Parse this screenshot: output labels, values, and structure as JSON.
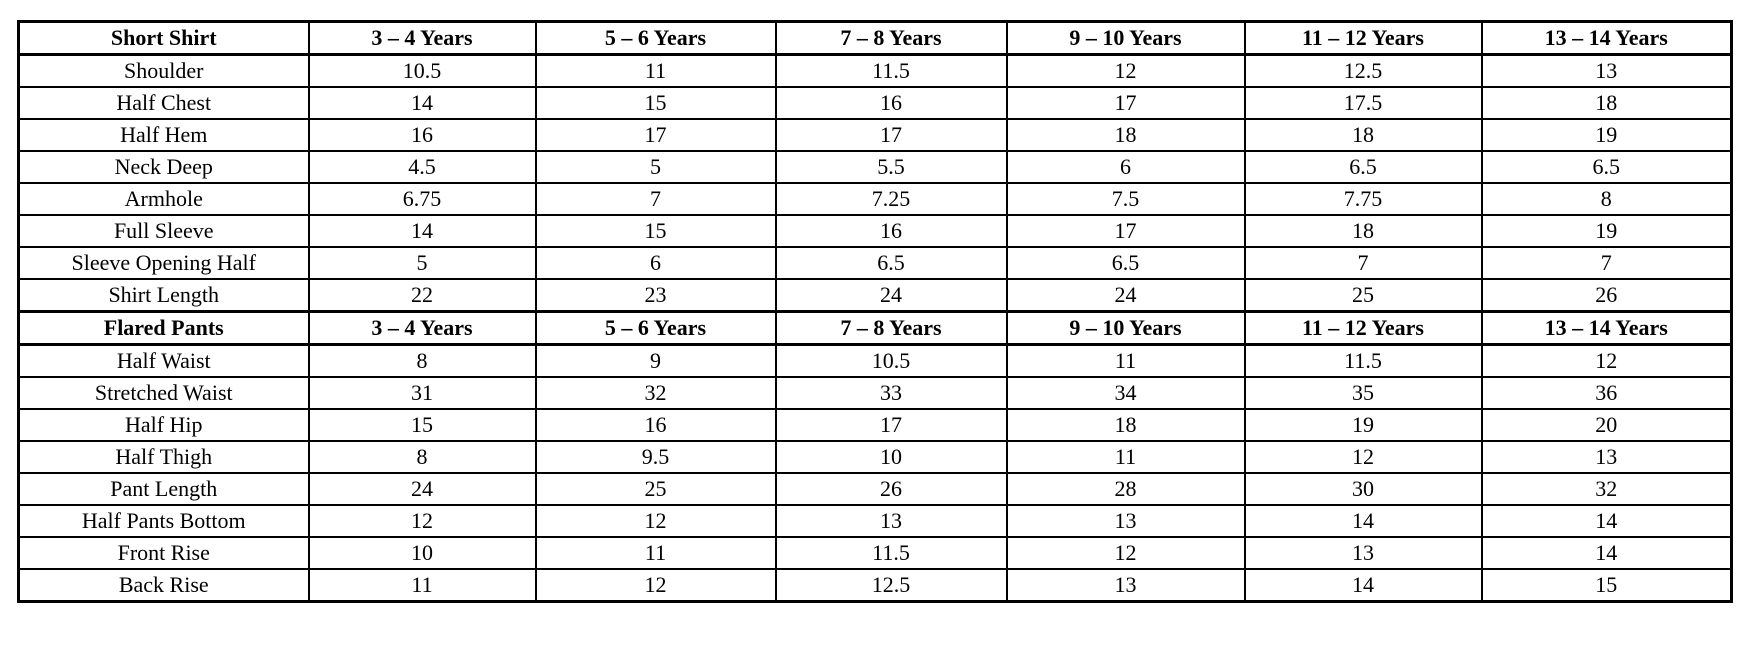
{
  "table": {
    "colors": {
      "border": "#000000",
      "background": "#ffffff",
      "text": "#000000"
    },
    "sections": [
      {
        "header": {
          "title": "Short Shirt",
          "columns": [
            "3 – 4 Years",
            "5 – 6 Years",
            "7 – 8 Years",
            "9 – 10 Years",
            "11 – 12 Years",
            "13 – 14 Years"
          ]
        },
        "rows": [
          {
            "label": "Shoulder",
            "values": [
              "10.5",
              "11",
              "11.5",
              "12",
              "12.5",
              "13"
            ]
          },
          {
            "label": "Half Chest",
            "values": [
              "14",
              "15",
              "16",
              "17",
              "17.5",
              "18"
            ]
          },
          {
            "label": "Half Hem",
            "values": [
              "16",
              "17",
              "17",
              "18",
              "18",
              "19"
            ]
          },
          {
            "label": "Neck Deep",
            "values": [
              "4.5",
              "5",
              "5.5",
              "6",
              "6.5",
              "6.5"
            ]
          },
          {
            "label": "Armhole",
            "values": [
              "6.75",
              "7",
              "7.25",
              "7.5",
              "7.75",
              "8"
            ]
          },
          {
            "label": "Full Sleeve",
            "values": [
              "14",
              "15",
              "16",
              "17",
              "18",
              "19"
            ]
          },
          {
            "label": "Sleeve Opening Half",
            "values": [
              "5",
              "6",
              "6.5",
              "6.5",
              "7",
              "7"
            ]
          },
          {
            "label": "Shirt Length",
            "values": [
              "22",
              "23",
              "24",
              "24",
              "25",
              "26"
            ]
          }
        ]
      },
      {
        "header": {
          "title": "Flared Pants",
          "columns": [
            "3 – 4 Years",
            "5 – 6 Years",
            "7 – 8 Years",
            "9 – 10 Years",
            "11 – 12 Years",
            "13 – 14 Years"
          ]
        },
        "rows": [
          {
            "label": "Half Waist",
            "values": [
              "8",
              "9",
              "10.5",
              "11",
              "11.5",
              "12"
            ]
          },
          {
            "label": "Stretched Waist",
            "values": [
              "31",
              "32",
              "33",
              "34",
              "35",
              "36"
            ]
          },
          {
            "label": "Half Hip",
            "values": [
              "15",
              "16",
              "17",
              "18",
              "19",
              "20"
            ]
          },
          {
            "label": "Half Thigh",
            "values": [
              "8",
              "9.5",
              "10",
              "11",
              "12",
              "13"
            ]
          },
          {
            "label": "Pant Length",
            "values": [
              "24",
              "25",
              "26",
              "28",
              "30",
              "32"
            ]
          },
          {
            "label": "Half Pants Bottom",
            "values": [
              "12",
              "12",
              "13",
              "13",
              "14",
              "14"
            ]
          },
          {
            "label": "Front Rise",
            "values": [
              "10",
              "11",
              "11.5",
              "12",
              "13",
              "14"
            ]
          },
          {
            "label": "Back Rise",
            "values": [
              "11",
              "12",
              "12.5",
              "13",
              "14",
              "15"
            ]
          }
        ]
      }
    ]
  }
}
